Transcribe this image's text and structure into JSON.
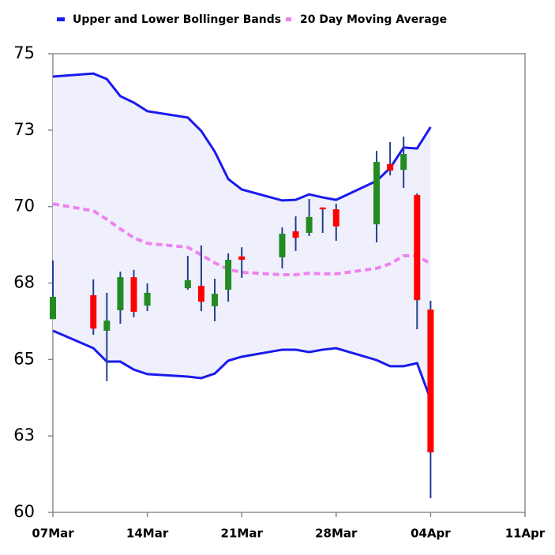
{
  "chart_data": {
    "type": "candlestick",
    "x": [
      "07Mar",
      "10Mar",
      "11Mar",
      "12Mar",
      "13Mar",
      "14Mar",
      "17Mar",
      "18Mar",
      "19Mar",
      "20Mar",
      "21Mar",
      "24Mar",
      "25Mar",
      "26Mar",
      "27Mar",
      "28Mar",
      "31Mar",
      "01Apr",
      "02Apr",
      "03Apr",
      "04Apr"
    ],
    "open": [
      66.32,
      67.1,
      65.94,
      66.61,
      67.69,
      66.76,
      67.33,
      67.41,
      66.74,
      67.28,
      68.37,
      68.34,
      69.19,
      69.14,
      69.97,
      69.91,
      69.42,
      71.39,
      71.2,
      70.38,
      66.63
    ],
    "high": [
      68.24,
      67.62,
      67.18,
      67.87,
      67.93,
      67.49,
      68.39,
      68.73,
      67.64,
      68.47,
      68.67,
      69.32,
      69.68,
      70.25,
      69.97,
      70.09,
      71.82,
      72.11,
      72.29,
      70.43,
      66.92
    ],
    "low": [
      66.32,
      65.81,
      64.29,
      66.17,
      66.38,
      66.58,
      67.28,
      66.58,
      66.25,
      66.89,
      67.67,
      67.98,
      68.55,
      69.04,
      69.14,
      68.88,
      68.83,
      71.02,
      70.61,
      65.99,
      60.46
    ],
    "close": [
      67.05,
      66.01,
      66.27,
      67.69,
      66.56,
      67.18,
      67.59,
      66.89,
      67.15,
      68.26,
      68.26,
      69.11,
      68.98,
      69.66,
      69.91,
      69.35,
      71.46,
      71.18,
      71.72,
      66.94,
      61.96
    ],
    "up_color": "#228b22",
    "down_color": "#ff0000",
    "wick_color": "#1f3f8f",
    "band_fill": "#f0f0fd",
    "series": [
      {
        "name": "Upper and Lower Bollinger Bands",
        "color": "#1a1aee",
        "upper": [
          74.25,
          74.35,
          74.17,
          73.61,
          73.4,
          73.12,
          72.91,
          72.47,
          71.8,
          70.9,
          70.56,
          70.2,
          70.22,
          70.4,
          70.3,
          70.22,
          70.84,
          71.26,
          71.93,
          71.9,
          72.6
        ],
        "lower": [
          65.94,
          65.37,
          64.93,
          64.93,
          64.67,
          64.52,
          64.44,
          64.39,
          64.54,
          64.96,
          65.09,
          65.32,
          65.32,
          65.24,
          65.32,
          65.37,
          64.98,
          64.78,
          64.78,
          64.88,
          63.69
        ]
      },
      {
        "name": "20 Day Moving Average",
        "color": "#ee82ee",
        "values": [
          70.09,
          69.86,
          69.58,
          69.27,
          68.98,
          68.8,
          68.67,
          68.42,
          68.16,
          67.95,
          67.85,
          67.77,
          67.77,
          67.82,
          67.8,
          67.8,
          67.98,
          68.13,
          68.39,
          68.39,
          68.13
        ]
      }
    ],
    "xlim": [
      "07Mar",
      "11Apr"
    ],
    "xticks": [
      "07Mar",
      "14Mar",
      "21Mar",
      "28Mar",
      "04Apr",
      "11Apr"
    ],
    "ylim": [
      60,
      75
    ],
    "yticks": [
      60,
      {
        "value": 62.5,
        "label": "63"
      },
      65,
      {
        "value": 67.5,
        "label": "68"
      },
      70,
      {
        "value": 72.5,
        "label": "73"
      },
      75
    ],
    "legend": "top-left"
  }
}
